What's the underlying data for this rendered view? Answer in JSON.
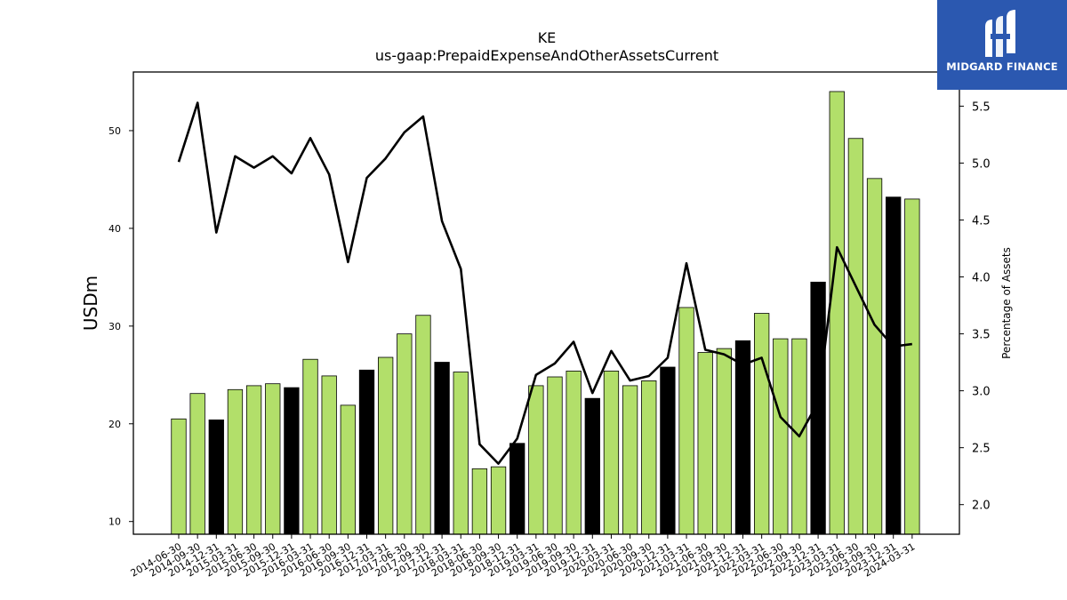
{
  "chart_data": {
    "type": "bar",
    "title": "KE",
    "subtitle": "us-gaap:PrepaidExpenseAndOtherAssetsCurrent",
    "ylabel": "USDm",
    "y2label": "Percentage of Assets",
    "ylim": [
      8.7,
      56
    ],
    "y2lim": [
      1.74,
      5.8
    ],
    "yticks": [
      10,
      20,
      30,
      40,
      50
    ],
    "y2ticks": [
      2.0,
      2.5,
      3.0,
      3.5,
      4.0,
      4.5,
      5.0,
      5.5
    ],
    "categories": [
      "2014-06-30",
      "2014-09-30",
      "2014-12-31",
      "2015-03-31",
      "2015-06-30",
      "2015-09-30",
      "2015-12-31",
      "2016-03-31",
      "2016-06-30",
      "2016-09-30",
      "2016-12-31",
      "2017-03-31",
      "2017-06-30",
      "2017-09-30",
      "2017-12-31",
      "2018-03-31",
      "2018-06-30",
      "2018-09-30",
      "2018-12-31",
      "2019-03-31",
      "2019-06-30",
      "2019-09-30",
      "2019-12-31",
      "2020-03-31",
      "2020-06-30",
      "2020-09-30",
      "2020-12-31",
      "2021-03-31",
      "2021-06-30",
      "2021-09-30",
      "2021-12-31",
      "2022-03-31",
      "2022-06-30",
      "2022-09-30",
      "2022-12-31",
      "2023-03-31",
      "2023-06-30",
      "2023-09-30",
      "2023-12-31",
      "2024-03-31"
    ],
    "series": [
      {
        "type": "bar",
        "values": [
          20.5,
          23.1,
          20.4,
          23.5,
          23.9,
          24.1,
          23.7,
          26.6,
          24.9,
          21.9,
          25.5,
          26.8,
          29.2,
          31.1,
          26.3,
          25.3,
          15.4,
          15.6,
          18.0,
          23.9,
          24.8,
          25.4,
          22.6,
          25.4,
          23.9,
          24.4,
          25.8,
          31.9,
          27.3,
          27.7,
          28.5,
          31.3,
          28.7,
          28.7,
          34.5,
          54.0,
          49.2,
          45.1,
          43.2,
          43.0
        ],
        "highlight": [
          false,
          false,
          true,
          false,
          false,
          false,
          true,
          false,
          false,
          false,
          true,
          false,
          false,
          false,
          true,
          false,
          false,
          false,
          true,
          false,
          false,
          false,
          true,
          false,
          false,
          false,
          true,
          false,
          false,
          false,
          true,
          false,
          false,
          false,
          true,
          false,
          false,
          false,
          true,
          false
        ]
      },
      {
        "type": "line",
        "axis": "right",
        "values": [
          5.01,
          5.53,
          4.39,
          5.06,
          4.96,
          5.06,
          4.91,
          5.22,
          4.9,
          4.13,
          4.87,
          5.04,
          5.27,
          5.41,
          4.49,
          4.07,
          2.53,
          2.36,
          2.58,
          3.14,
          3.24,
          3.43,
          2.98,
          3.35,
          3.09,
          3.13,
          3.29,
          4.12,
          3.36,
          3.32,
          3.23,
          3.29,
          2.77,
          2.6,
          2.9,
          4.26,
          3.92,
          3.58,
          3.39,
          3.41
        ]
      }
    ],
    "colors": {
      "bar": "#b2df6a",
      "highlight": "#000000",
      "line": "#000000",
      "edge": "#000000"
    },
    "grid": false,
    "legend": "none"
  },
  "logo": {
    "text": "MIDGARD FINANCE",
    "bg": "#2b58b0"
  }
}
